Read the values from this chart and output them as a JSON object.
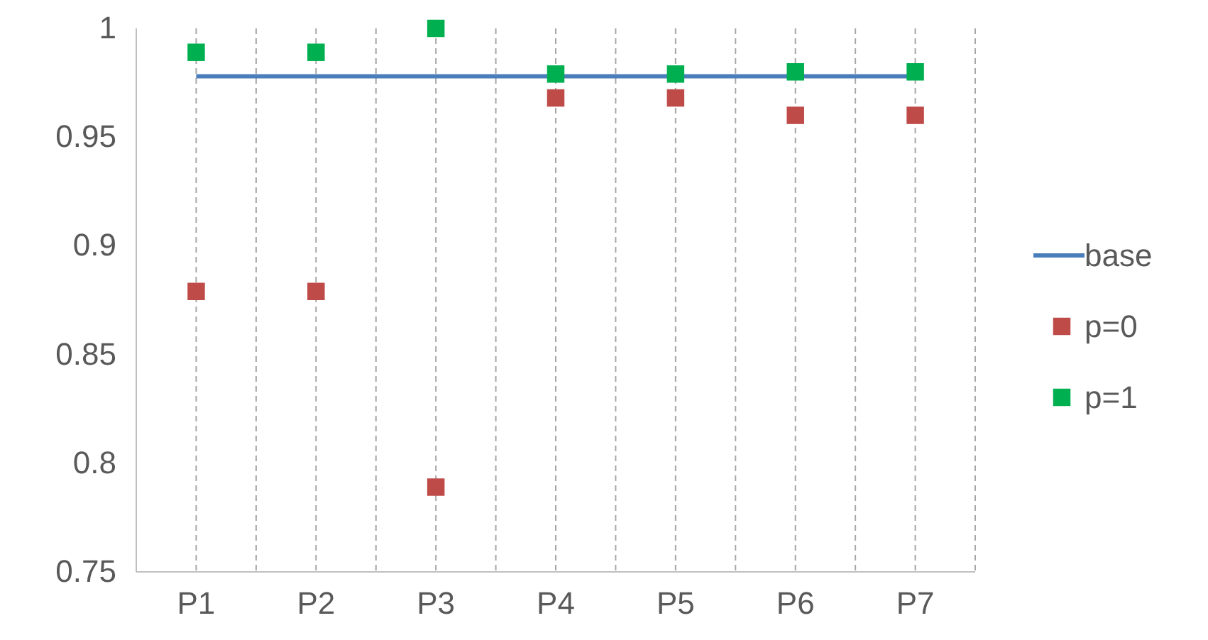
{
  "chart_data": {
    "type": "scatter",
    "categories": [
      "P1",
      "P2",
      "P3",
      "P4",
      "P5",
      "P6",
      "P7"
    ],
    "series": [
      {
        "name": "base",
        "type": "line",
        "marker": "none",
        "color": "#4a7ebb",
        "values": [
          0.978,
          0.978,
          0.978,
          0.978,
          0.978,
          0.978,
          0.978
        ]
      },
      {
        "name": "p=0",
        "color": "#be4b48",
        "values": [
          0.879,
          0.879,
          0.789,
          0.968,
          0.968,
          0.96,
          0.96
        ]
      },
      {
        "name": "p=1",
        "color": "#00b050",
        "values": [
          0.989,
          0.989,
          1,
          0.979,
          0.979,
          0.98,
          0.98
        ]
      }
    ],
    "ylim": [
      0.75,
      1
    ],
    "yticks": [
      0.75,
      0.8,
      0.85,
      0.9,
      0.95,
      1
    ],
    "grid": "x",
    "legend": "right",
    "marker": "square"
  }
}
